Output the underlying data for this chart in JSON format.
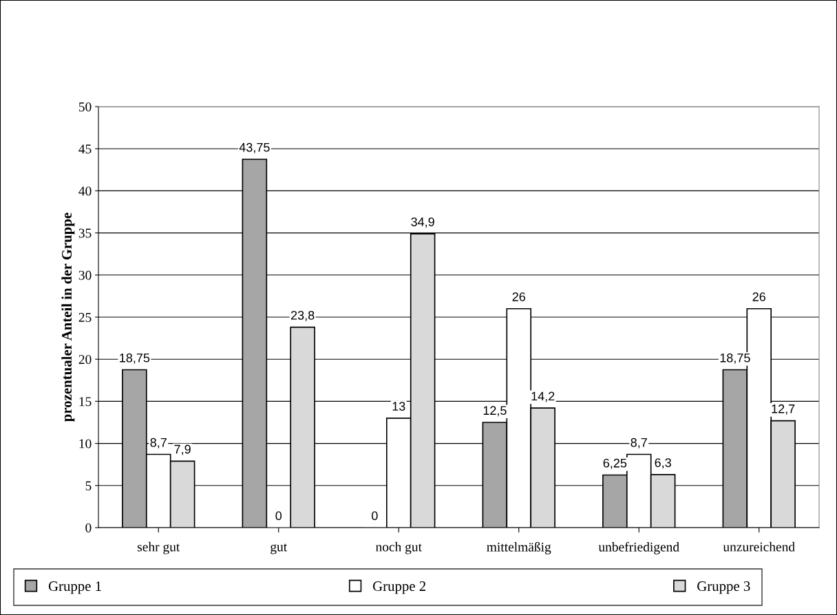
{
  "chart_data": {
    "type": "bar",
    "ylabel": "prozentualer Anteil in der Gruppe",
    "categories": [
      "sehr gut",
      "gut",
      "noch gut",
      "mittelmäßig",
      "unbefriedigend",
      "unzureichend"
    ],
    "series": [
      {
        "name": "Gruppe 1",
        "color": "#a6a6a6",
        "values": [
          18.75,
          43.75,
          0,
          12.5,
          6.25,
          18.75
        ],
        "value_labels": [
          "18,75",
          "43,75",
          "0",
          "12,5",
          "6,25",
          "18,75"
        ]
      },
      {
        "name": "Gruppe 2",
        "color": "#ffffff",
        "values": [
          8.7,
          0,
          13,
          26,
          8.7,
          26
        ],
        "value_labels": [
          "8,7",
          "0",
          "13",
          "26",
          "8,7",
          "26"
        ]
      },
      {
        "name": "Gruppe 3",
        "color": "#d9d9d9",
        "values": [
          7.9,
          23.8,
          34.9,
          14.2,
          6.3,
          12.7
        ],
        "value_labels": [
          "7,9",
          "23,8",
          "34,9",
          "14,2",
          "6,3",
          "12,7"
        ]
      }
    ],
    "ylim": [
      0,
      50
    ],
    "yticks": [
      0,
      5,
      10,
      15,
      20,
      25,
      30,
      35,
      40,
      45,
      50
    ],
    "grid": "y",
    "legend": "bottom"
  }
}
